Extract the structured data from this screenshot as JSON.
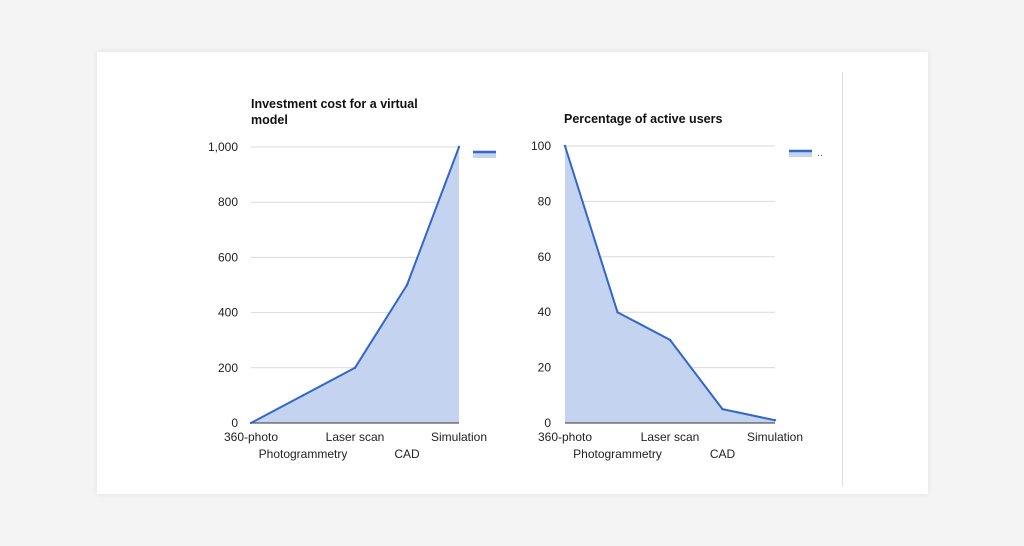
{
  "colors": {
    "line": "#3366cc",
    "fill": "#c4d3ef",
    "grid": "#d9d9d9",
    "axis": "#333333"
  },
  "chart_data": [
    {
      "type": "area",
      "title_lines": [
        "Investment cost for a virtual",
        "model"
      ],
      "categories": [
        "360-photo",
        "Photogrammetry",
        "Laser scan",
        "CAD",
        "Simulation"
      ],
      "series": [
        {
          "values": [
            0,
            100,
            200,
            500,
            1000
          ]
        }
      ],
      "ylim": [
        0,
        1000
      ],
      "yticks": [
        0,
        200,
        400,
        600,
        800,
        1000
      ],
      "ytick_labels": [
        "0",
        "200",
        "400",
        "600",
        "800",
        "1,000"
      ],
      "grid": true,
      "legend": "right"
    },
    {
      "type": "area",
      "title_lines": [
        "Percentage of active users"
      ],
      "categories": [
        "360-photo",
        "Photogrammetry",
        "Laser scan",
        "CAD",
        "Simulation"
      ],
      "series": [
        {
          "values": [
            100,
            40,
            30,
            5,
            1
          ]
        }
      ],
      "ylim": [
        0,
        100
      ],
      "yticks": [
        0,
        20,
        40,
        60,
        80,
        100
      ],
      "ytick_labels": [
        "0",
        "20",
        "40",
        "60",
        "80",
        "100"
      ],
      "grid": true,
      "legend": "right",
      "legend_text": ".."
    }
  ]
}
